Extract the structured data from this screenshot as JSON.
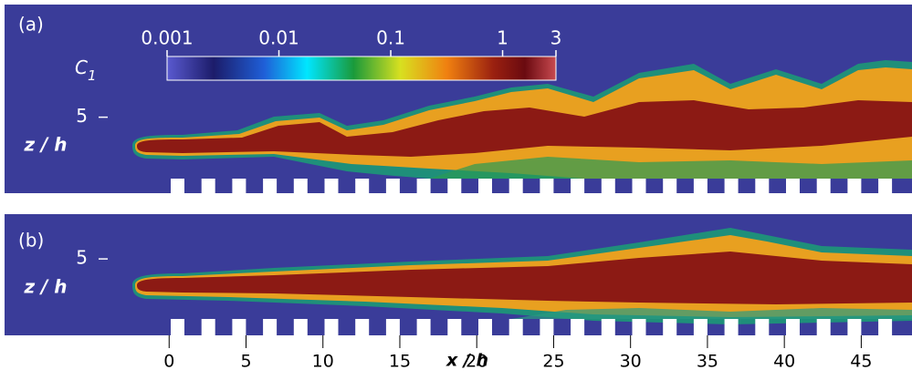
{
  "chart_data": [
    {
      "type": "field",
      "panel": "(a)",
      "ylabel": "z / h",
      "xlim": [
        -10.7,
        48.3
      ],
      "ylim": [
        0,
        12.5
      ],
      "yticks": [
        5
      ],
      "colorbar": {
        "label": "C",
        "label_sub": "1",
        "scale": "log",
        "lim": [
          0.001,
          3
        ],
        "ticks": [
          0.001,
          0.01,
          0.1,
          1,
          3
        ]
      }
    },
    {
      "type": "field",
      "panel": "(b)",
      "ylabel": "z / h",
      "xlabel": "x / h",
      "xlim": [
        -10.7,
        48.3
      ],
      "ylim": [
        0,
        8
      ],
      "yticks": [
        5
      ],
      "xticks": [
        0,
        5,
        10,
        15,
        20,
        25,
        30,
        35,
        40,
        45
      ]
    }
  ]
}
